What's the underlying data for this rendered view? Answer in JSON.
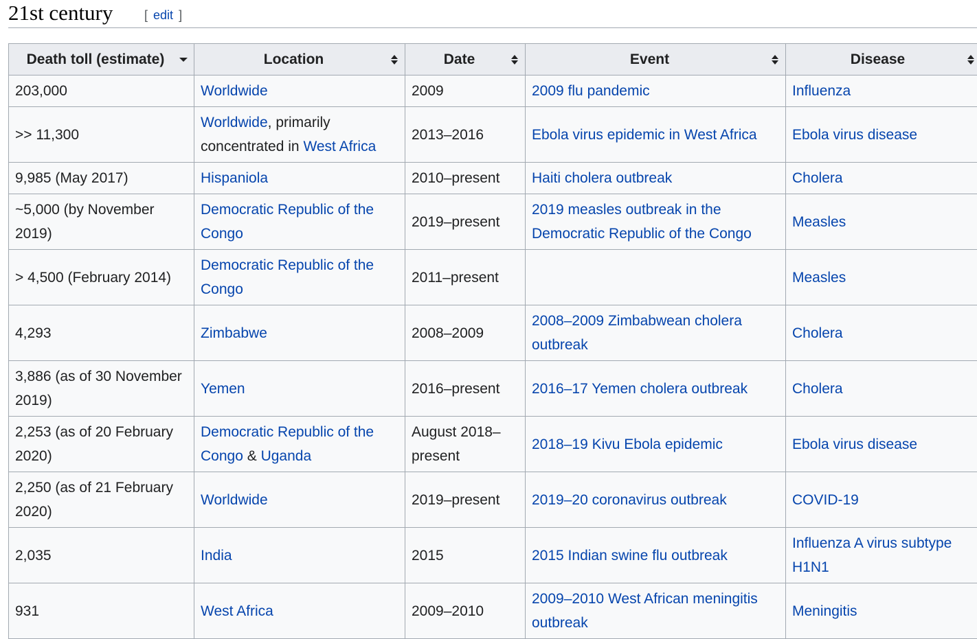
{
  "section": {
    "title": "21st century",
    "edit_open": "[",
    "edit_label": "edit",
    "edit_close": "]"
  },
  "table": {
    "headers": [
      {
        "label": "Death toll (estimate)",
        "sort": "sorted-descending"
      },
      {
        "label": "Location",
        "sort": "unsorted"
      },
      {
        "label": "Date",
        "sort": "unsorted"
      },
      {
        "label": "Event",
        "sort": "unsorted"
      },
      {
        "label": "Disease",
        "sort": "unsorted"
      }
    ],
    "rows": [
      {
        "toll": "203,000",
        "location": [
          {
            "text": "Worldwide",
            "link": true
          }
        ],
        "date": "2009",
        "event": "2009 flu pandemic",
        "disease": "Influenza"
      },
      {
        "toll": ">> 11,300",
        "location": [
          {
            "text": "Worldwide",
            "link": true
          },
          {
            "text": ", primarily concentrated in ",
            "link": false
          },
          {
            "text": "West Africa",
            "link": true
          }
        ],
        "date": "2013–2016",
        "event": "Ebola virus epidemic in West Africa",
        "disease": "Ebola virus disease"
      },
      {
        "toll": "9,985 (May 2017)",
        "location": [
          {
            "text": "Hispaniola",
            "link": true
          }
        ],
        "date": "2010–present",
        "event": "Haiti cholera outbreak",
        "disease": "Cholera"
      },
      {
        "toll": "~5,000 (by November 2019)",
        "location": [
          {
            "text": "Democratic Republic of the Congo",
            "link": true
          }
        ],
        "date": "2019–present",
        "event": "2019 measles outbreak in the Democratic Republic of the Congo",
        "disease": "Measles"
      },
      {
        "toll": "> 4,500 (February 2014)",
        "location": [
          {
            "text": "Democratic Republic of the Congo",
            "link": true
          }
        ],
        "date": "2011–present",
        "event": "",
        "disease": "Measles"
      },
      {
        "toll": "4,293",
        "location": [
          {
            "text": "Zimbabwe",
            "link": true
          }
        ],
        "date": "2008–2009",
        "event": "2008–2009 Zimbabwean cholera outbreak",
        "disease": "Cholera"
      },
      {
        "toll": "3,886 (as of 30 November 2019)",
        "location": [
          {
            "text": "Yemen",
            "link": true
          }
        ],
        "date": "2016–present",
        "event": "2016–17 Yemen cholera outbreak",
        "disease": "Cholera"
      },
      {
        "toll": "2,253 (as of 20 February 2020)",
        "location": [
          {
            "text": "Democratic Republic of the Congo",
            "link": true
          },
          {
            "text": " & ",
            "link": false
          },
          {
            "text": "Uganda",
            "link": true
          }
        ],
        "date": "August 2018–present",
        "event": "2018–19 Kivu Ebola epidemic",
        "disease": "Ebola virus disease"
      },
      {
        "toll": "2,250 (as of 21 February 2020)",
        "location": [
          {
            "text": "Worldwide",
            "link": true
          }
        ],
        "date": "2019–present",
        "event": "2019–20 coronavirus outbreak",
        "disease": "COVID-19"
      },
      {
        "toll": "2,035",
        "location": [
          {
            "text": "India",
            "link": true
          }
        ],
        "date": "2015",
        "event": "2015 Indian swine flu outbreak",
        "disease": "Influenza A virus subtype H1N1"
      },
      {
        "toll": "931",
        "location": [
          {
            "text": "West Africa",
            "link": true
          }
        ],
        "date": "2009–2010",
        "event": "2009–2010 West African meningitis outbreak",
        "disease": "Meningitis"
      }
    ]
  },
  "colors": {
    "link": "#0645ad",
    "header_bg": "#eaecf0",
    "cell_bg": "#f8f9fa",
    "border": "#a2a9b1"
  }
}
